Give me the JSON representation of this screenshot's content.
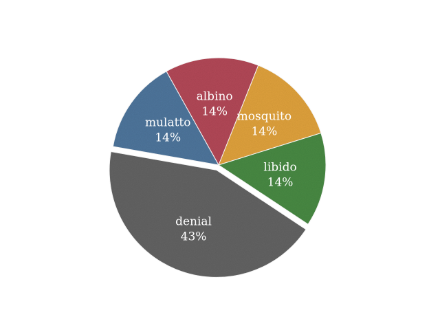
{
  "chart_data": {
    "type": "pie",
    "title": "",
    "slices": [
      {
        "label": "albino",
        "value": 14,
        "display": "14%",
        "color": "#b34a58"
      },
      {
        "label": "mosquito",
        "value": 14,
        "display": "14%",
        "color": "#e0a23c"
      },
      {
        "label": "libido",
        "value": 14,
        "display": "14%",
        "color": "#4a8a45"
      },
      {
        "label": "denial",
        "value": 43,
        "display": "43%",
        "color": "#646464"
      },
      {
        "label": "mulatto",
        "value": 14,
        "display": "14%",
        "color": "#50769c"
      }
    ],
    "exploded": [
      "denial"
    ],
    "legend": "none"
  }
}
